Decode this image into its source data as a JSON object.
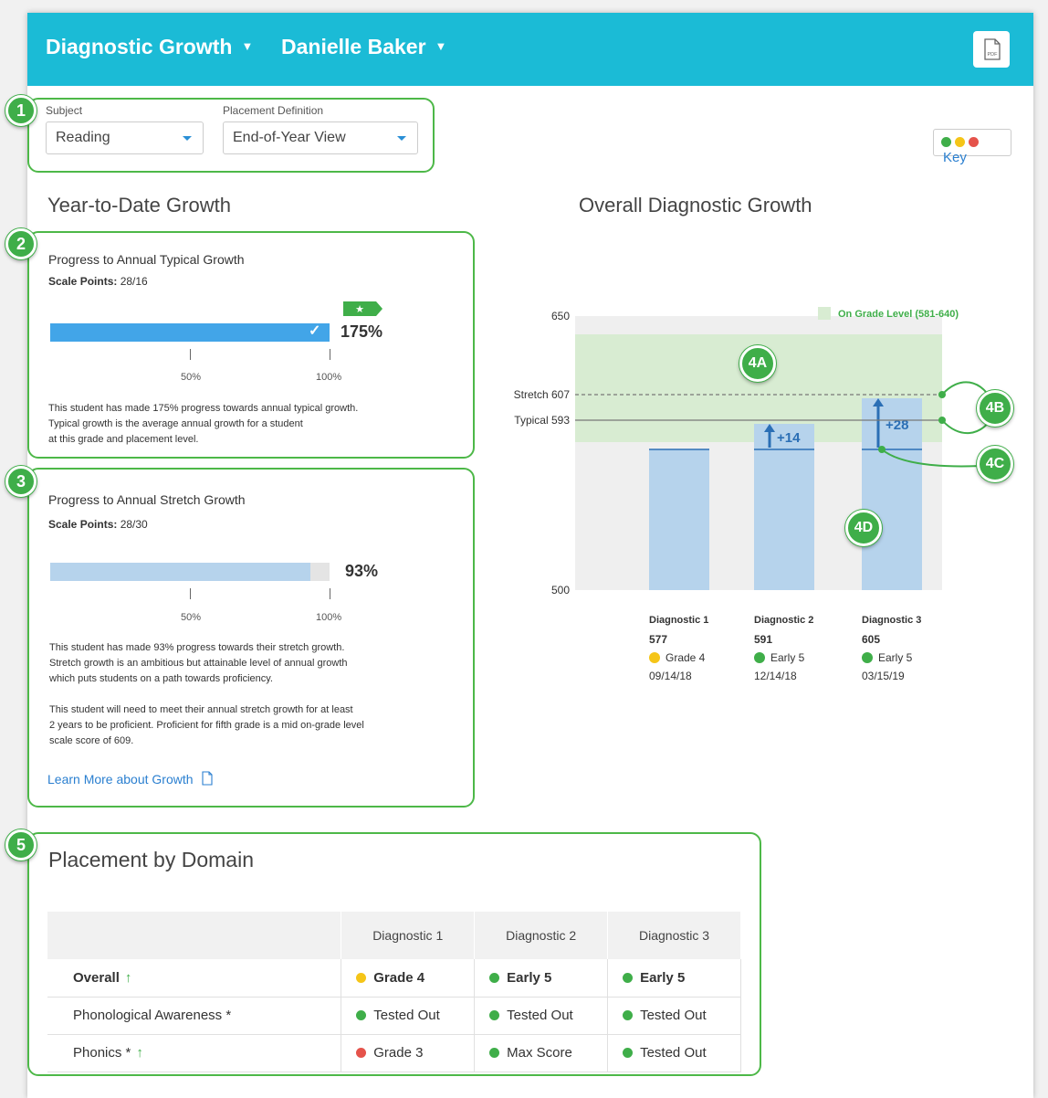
{
  "header": {
    "report_title": "Diagnostic Growth",
    "student_name": "Danielle Baker",
    "pdf_icon_label": "PDF"
  },
  "filters": {
    "subject_label": "Subject",
    "subject_value": "Reading",
    "placement_label": "Placement Definition",
    "placement_value": "End-of-Year View"
  },
  "key_button": {
    "label": "Key",
    "dot_colors": [
      "#3fae49",
      "#f5c518",
      "#e5534b"
    ]
  },
  "callouts": {
    "c1": "1",
    "c2": "2",
    "c3": "3",
    "c5": "5",
    "c4a": "4A",
    "c4b": "4B",
    "c4c": "4C",
    "c4d": "4D"
  },
  "ytd": {
    "title": "Year-to-Date Growth",
    "typical": {
      "title": "Progress to Annual Typical Growth",
      "scale_label": "Scale Points:",
      "scale_value": "28/16",
      "percent": "175%",
      "fill_fraction": 1.0,
      "tick50": "50%",
      "tick100": "100%",
      "desc_line1": "This student has made 175% progress towards annual typical growth.",
      "desc_line2": "Typical growth is the average annual growth for a student",
      "desc_line3": "at this grade and placement level."
    },
    "stretch": {
      "title": "Progress to Annual Stretch Growth",
      "scale_label": "Scale Points:",
      "scale_value": "28/30",
      "percent": "93%",
      "fill_fraction": 0.93,
      "tick50": "50%",
      "tick100": "100%",
      "desc1_line1": "This student has made 93% progress towards their stretch growth.",
      "desc1_line2": "Stretch growth is an ambitious but attainable level of annual growth",
      "desc1_line3": "which puts students on a path towards proficiency.",
      "desc2_line1": "This student will need to meet their annual stretch growth for at least",
      "desc2_line2": "2 years to be proficient. Proficient for fifth grade is a mid on-grade level",
      "desc2_line3": "scale score of 609."
    },
    "learn_more": "Learn More about Growth"
  },
  "overall": {
    "title": "Overall Diagnostic Growth"
  },
  "chart_data": {
    "type": "bar",
    "title": "Overall Diagnostic Growth",
    "ylim": [
      500,
      650
    ],
    "y_tick_labels": [
      "650",
      "500"
    ],
    "band": {
      "label": "On Grade Level (581-640)",
      "low": 581,
      "high": 640
    },
    "reference_lines": [
      {
        "label": "Stretch 607",
        "value": 607,
        "style": "dashed"
      },
      {
        "label": "Typical 593",
        "value": 593,
        "style": "solid"
      }
    ],
    "categories": [
      "Diagnostic 1",
      "Diagnostic 2",
      "Diagnostic 3"
    ],
    "values": [
      577,
      591,
      605
    ],
    "score_labels": [
      "577",
      "591",
      "605"
    ],
    "baseline": 577,
    "growth_labels": [
      "",
      "+14",
      "+28"
    ],
    "placements": [
      "Grade 4",
      "Early 5",
      "Early 5"
    ],
    "placement_colors": [
      "#f5c518",
      "#3fae49",
      "#3fae49"
    ],
    "dates": [
      "09/14/18",
      "12/14/18",
      "03/15/19"
    ]
  },
  "placement_by_domain": {
    "title": "Placement by Domain",
    "columns": [
      "",
      "Diagnostic 1",
      "Diagnostic 2",
      "Diagnostic 3"
    ],
    "rows": [
      {
        "name": "Overall",
        "up": "↑",
        "bold": true,
        "cells": [
          {
            "text": "Grade 4",
            "color": "#f5c518"
          },
          {
            "text": "Early 5",
            "color": "#3fae49"
          },
          {
            "text": "Early 5",
            "color": "#3fae49"
          }
        ]
      },
      {
        "name": "Phonological Awareness *",
        "up": "",
        "bold": false,
        "cells": [
          {
            "text": "Tested Out",
            "color": "#3fae49"
          },
          {
            "text": "Tested Out",
            "color": "#3fae49"
          },
          {
            "text": "Tested Out",
            "color": "#3fae49"
          }
        ]
      },
      {
        "name": "Phonics *",
        "up": "↑",
        "bold": false,
        "cells": [
          {
            "text": "Grade 3",
            "color": "#e5534b"
          },
          {
            "text": "Max Score",
            "color": "#3fae49"
          },
          {
            "text": "Tested Out",
            "color": "#3fae49"
          }
        ]
      }
    ]
  }
}
